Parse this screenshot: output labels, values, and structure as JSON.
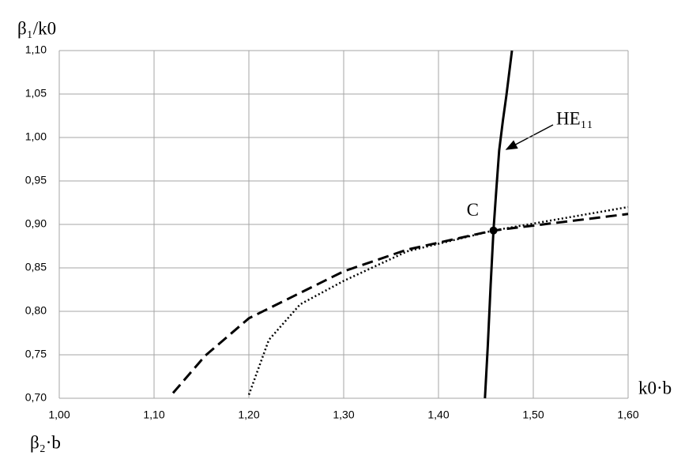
{
  "chart_data": {
    "type": "line",
    "y_label": "β₁/k0",
    "x_label": "k0·b",
    "x_label_2": "β₂·b",
    "xlim": [
      1.0,
      1.6
    ],
    "ylim": [
      0.7,
      1.1
    ],
    "xticks": [
      {
        "value": 1.0,
        "label": "1,00"
      },
      {
        "value": 1.1,
        "label": "1,10"
      },
      {
        "value": 1.2,
        "label": "1,20"
      },
      {
        "value": 1.3,
        "label": "1,30"
      },
      {
        "value": 1.4,
        "label": "1,40"
      },
      {
        "value": 1.5,
        "label": "1,50"
      },
      {
        "value": 1.6,
        "label": "1,60"
      }
    ],
    "yticks": [
      {
        "value": 0.7,
        "label": "0,70"
      },
      {
        "value": 0.75,
        "label": "0,75"
      },
      {
        "value": 0.8,
        "label": "0,80"
      },
      {
        "value": 0.85,
        "label": "0,85"
      },
      {
        "value": 0.9,
        "label": "0,90"
      },
      {
        "value": 0.95,
        "label": "0,95"
      },
      {
        "value": 1.0,
        "label": "1,00"
      },
      {
        "value": 1.05,
        "label": "1,05"
      },
      {
        "value": 1.1,
        "label": "1,10"
      }
    ],
    "grid": true,
    "series": [
      {
        "color": "#000000",
        "style": "solid",
        "x": [
          1.449,
          1.452,
          1.455,
          1.458,
          1.461,
          1.464,
          1.468,
          1.4717,
          1.4775
        ],
        "values": [
          0.7,
          0.76,
          0.83,
          0.893,
          0.94,
          0.985,
          1.02,
          1.049,
          1.1
        ]
      },
      {
        "color": "#000000",
        "style": "dashed",
        "x": [
          1.12,
          1.154,
          1.2,
          1.3,
          1.367,
          1.458,
          1.6
        ],
        "values": [
          0.706,
          0.749,
          0.792,
          0.846,
          0.871,
          0.893,
          0.912
        ]
      },
      {
        "color": "#000000",
        "style": "dotted",
        "x": [
          1.2,
          1.221,
          1.254,
          1.3,
          1.367,
          1.458,
          1.6
        ],
        "values": [
          0.704,
          0.767,
          0.808,
          0.835,
          0.869,
          0.893,
          0.92
        ]
      }
    ],
    "points": [
      {
        "label": "C",
        "x": 1.458,
        "y": 0.893
      }
    ],
    "annotations": [
      {
        "text": "HE₁₁"
      }
    ]
  }
}
